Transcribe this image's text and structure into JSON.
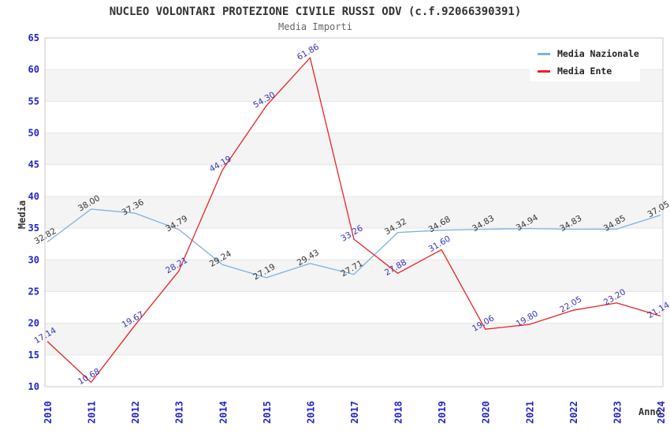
{
  "chart_data": {
    "type": "line",
    "title": "NUCLEO VOLONTARI PROTEZIONE CIVILE RUSSI ODV (c.f.92066390391)",
    "subtitle": "Media Importi",
    "xlabel": "Anno",
    "ylabel": "Media",
    "x": [
      "2010",
      "2011",
      "2012",
      "2013",
      "2014",
      "2015",
      "2016",
      "2017",
      "2018",
      "2019",
      "2020",
      "2021",
      "2022",
      "2023",
      "2024"
    ],
    "ylim": [
      10,
      65
    ],
    "ytick_step": 5,
    "grid": "horizontal-bands",
    "legend_position": "top-right",
    "series": [
      {
        "name": "Media Nazionale",
        "color": "#7fb0e0",
        "label_color": "#333333",
        "values": [
          32.82,
          38.0,
          37.36,
          34.79,
          29.24,
          27.19,
          29.43,
          27.71,
          34.32,
          34.68,
          34.83,
          34.94,
          34.83,
          34.85,
          37.05
        ]
      },
      {
        "name": "Media Ente",
        "color": "#ee2222",
        "label_color": "#3333bb",
        "values": [
          17.14,
          10.68,
          19.67,
          28.21,
          44.19,
          54.3,
          61.86,
          33.26,
          27.88,
          31.6,
          19.06,
          19.8,
          22.05,
          23.2,
          21.14
        ]
      }
    ],
    "colors": {
      "axis_tick": "#2222cc",
      "band": "#f4f4f4",
      "gridline": "#e6e6e6",
      "plot_border": "#c8c8c8",
      "title_text": "#333333",
      "subtitle_text": "#666666"
    }
  }
}
